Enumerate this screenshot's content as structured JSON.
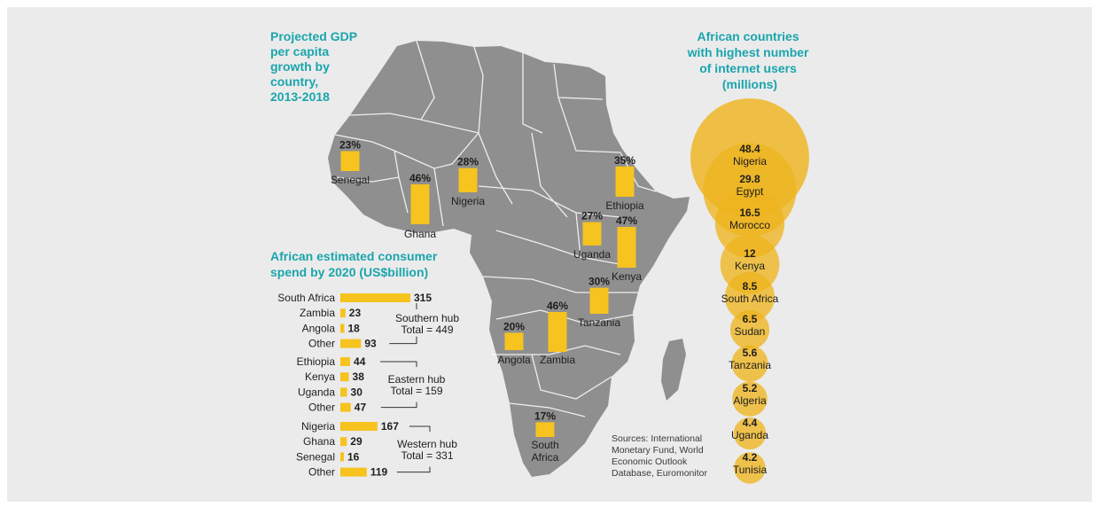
{
  "colors": {
    "bar": "#f6c31f",
    "bubble": "#eeb51f",
    "map": "#8f8f8f",
    "teal": "#1aa5ad",
    "bg": "#ebebeb"
  },
  "gdp_title_lines": [
    "Projected GDP",
    "per capita",
    "growth by",
    "country,",
    "2013-2018"
  ],
  "spend_title_lines": [
    "African estimated consumer",
    "spend by 2020 (US$billion)"
  ],
  "internet_title_lines": [
    "African countries",
    "with highest number",
    "of internet users",
    "(millions)"
  ],
  "sources_lines": [
    "Sources: International",
    "Monetary Fund, World",
    "Economic Outlook",
    "Database, Euromonitor"
  ],
  "chart_data": [
    {
      "type": "bar",
      "title": "Projected GDP per capita growth by country, 2013-2018",
      "unit": "%",
      "categories": [
        "Senegal",
        "Ghana",
        "Nigeria",
        "Ethiopia",
        "Uganda",
        "Kenya",
        "Tanzania",
        "Angola",
        "Zambia",
        "South Africa"
      ],
      "values": [
        23,
        46,
        28,
        35,
        27,
        47,
        30,
        20,
        46,
        17
      ],
      "labels": [
        "23%",
        "46%",
        "28%",
        "35%",
        "27%",
        "47%",
        "30%",
        "20%",
        "46%",
        "17%"
      ],
      "ylim": [
        0,
        50
      ]
    },
    {
      "type": "bar",
      "orientation": "horizontal",
      "title": "African estimated consumer spend by 2020 (US$billion)",
      "hubs": [
        {
          "name": "Southern hub",
          "total_label": "Total = 449",
          "total": 449,
          "categories": [
            "South Africa",
            "Zambia",
            "Angola",
            "Other"
          ],
          "values": [
            315,
            23,
            18,
            93
          ]
        },
        {
          "name": "Eastern hub",
          "total_label": "Total = 159",
          "total": 159,
          "categories": [
            "Ethiopia",
            "Kenya",
            "Uganda",
            "Other"
          ],
          "values": [
            44,
            38,
            30,
            47
          ]
        },
        {
          "name": "Western hub",
          "total_label": "Total = 331",
          "total": 331,
          "categories": [
            "Nigeria",
            "Ghana",
            "Senegal",
            "Other"
          ],
          "values": [
            167,
            29,
            16,
            119
          ]
        }
      ],
      "xlim": [
        0,
        315
      ]
    },
    {
      "type": "scatter",
      "subtype": "bubble",
      "title": "African countries with highest number of internet users (millions)",
      "categories": [
        "Nigeria",
        "Egypt",
        "Morocco",
        "Kenya",
        "South Africa",
        "Sudan",
        "Tanzania",
        "Algeria",
        "Uganda",
        "Tunisia"
      ],
      "values": [
        48.4,
        29.8,
        16.5,
        12,
        8.5,
        6.5,
        5.6,
        5.2,
        4.4,
        4.2
      ],
      "labels": [
        "48.4",
        "29.8",
        "16.5",
        "12",
        "8.5",
        "6.5",
        "5.6",
        "5.2",
        "4.4",
        "4.2"
      ]
    }
  ]
}
